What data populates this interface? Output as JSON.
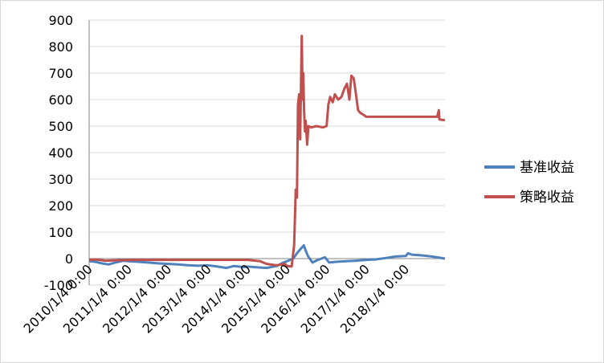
{
  "chart_data": {
    "type": "line",
    "title": "",
    "xlabel": "",
    "ylabel": "",
    "ylim": [
      -100,
      900
    ],
    "yticks": [
      -100,
      0,
      100,
      200,
      300,
      400,
      500,
      600,
      700,
      800,
      900
    ],
    "x_range": [
      "2010-01-04",
      "2018-12-31"
    ],
    "x_tick_labels": [
      "2010/1/4 0:00",
      "2011/1/4 0:00",
      "2012/1/4 0:00",
      "2013/1/4 0:00",
      "2014/1/4 0:00",
      "2015/1/4 0:00",
      "2016/1/4 0:00",
      "2017/1/4 0:00",
      "2018/1/4 0:00"
    ],
    "x_tick_dates": [
      "2010-01-04",
      "2011-01-04",
      "2012-01-04",
      "2013-01-04",
      "2014-01-04",
      "2015-01-04",
      "2016-01-04",
      "2017-01-04",
      "2018-01-04"
    ],
    "grid": "horizontal",
    "legend_position": "right",
    "series": [
      {
        "name": "基准收益",
        "color": "#4f81bd",
        "points": [
          [
            "2010-01-04",
            -10
          ],
          [
            "2010-03-01",
            -12
          ],
          [
            "2010-05-01",
            -18
          ],
          [
            "2010-07-01",
            -22
          ],
          [
            "2010-09-01",
            -15
          ],
          [
            "2010-11-15",
            -8
          ],
          [
            "2011-01-04",
            -10
          ],
          [
            "2011-04-01",
            -12
          ],
          [
            "2011-07-01",
            -15
          ],
          [
            "2011-10-01",
            -18
          ],
          [
            "2012-01-04",
            -20
          ],
          [
            "2012-04-01",
            -22
          ],
          [
            "2012-07-01",
            -25
          ],
          [
            "2012-10-01",
            -27
          ],
          [
            "2013-01-04",
            -25
          ],
          [
            "2013-04-01",
            -30
          ],
          [
            "2013-06-25",
            -35
          ],
          [
            "2013-09-01",
            -28
          ],
          [
            "2013-12-01",
            -32
          ],
          [
            "2014-01-04",
            -30
          ],
          [
            "2014-04-01",
            -33
          ],
          [
            "2014-07-01",
            -35
          ],
          [
            "2014-10-01",
            -28
          ],
          [
            "2014-12-01",
            -15
          ],
          [
            "2015-01-04",
            -10
          ],
          [
            "2015-03-01",
            0
          ],
          [
            "2015-04-15",
            25
          ],
          [
            "2015-06-08",
            50
          ],
          [
            "2015-06-25",
            30
          ],
          [
            "2015-07-15",
            10
          ],
          [
            "2015-08-26",
            -15
          ],
          [
            "2015-10-15",
            -5
          ],
          [
            "2015-12-20",
            5
          ],
          [
            "2016-01-27",
            -15
          ],
          [
            "2016-04-01",
            -12
          ],
          [
            "2016-07-01",
            -10
          ],
          [
            "2016-10-01",
            -8
          ],
          [
            "2017-01-04",
            -5
          ],
          [
            "2017-04-01",
            -3
          ],
          [
            "2017-07-01",
            2
          ],
          [
            "2017-10-01",
            8
          ],
          [
            "2018-01-04",
            10
          ],
          [
            "2018-01-25",
            20
          ],
          [
            "2018-03-01",
            15
          ],
          [
            "2018-06-01",
            12
          ],
          [
            "2018-09-01",
            8
          ],
          [
            "2018-12-31",
            0
          ]
        ]
      },
      {
        "name": "策略收益",
        "color": "#c0504d",
        "points": [
          [
            "2010-01-04",
            -5
          ],
          [
            "2010-03-01",
            -3
          ],
          [
            "2010-06-01",
            -8
          ],
          [
            "2011-01-04",
            -5
          ],
          [
            "2012-01-04",
            -5
          ],
          [
            "2013-01-04",
            -5
          ],
          [
            "2014-01-04",
            -5
          ],
          [
            "2014-05-01",
            -10
          ],
          [
            "2014-07-01",
            -20
          ],
          [
            "2014-10-01",
            -25
          ],
          [
            "2014-12-15",
            -20
          ],
          [
            "2015-01-04",
            -28
          ],
          [
            "2015-02-15",
            -30
          ],
          [
            "2015-03-10",
            50
          ],
          [
            "2015-03-25",
            260
          ],
          [
            "2015-04-05",
            230
          ],
          [
            "2015-04-15",
            580
          ],
          [
            "2015-04-25",
            620
          ],
          [
            "2015-05-05",
            450
          ],
          [
            "2015-05-20",
            840
          ],
          [
            "2015-05-28",
            600
          ],
          [
            "2015-06-03",
            700
          ],
          [
            "2015-06-10",
            560
          ],
          [
            "2015-06-18",
            480
          ],
          [
            "2015-06-25",
            520
          ],
          [
            "2015-07-08",
            430
          ],
          [
            "2015-07-20",
            500
          ],
          [
            "2015-08-15",
            495
          ],
          [
            "2015-10-01",
            500
          ],
          [
            "2015-12-01",
            495
          ],
          [
            "2016-01-04",
            500
          ],
          [
            "2016-01-20",
            580
          ],
          [
            "2016-02-05",
            610
          ],
          [
            "2016-03-01",
            590
          ],
          [
            "2016-03-20",
            620
          ],
          [
            "2016-04-20",
            600
          ],
          [
            "2016-05-20",
            610
          ],
          [
            "2016-06-15",
            640
          ],
          [
            "2016-07-10",
            660
          ],
          [
            "2016-08-01",
            600
          ],
          [
            "2016-08-20",
            690
          ],
          [
            "2016-09-10",
            680
          ],
          [
            "2016-10-01",
            620
          ],
          [
            "2016-10-20",
            560
          ],
          [
            "2016-11-10",
            550
          ],
          [
            "2016-12-01",
            545
          ],
          [
            "2017-01-04",
            535
          ],
          [
            "2017-06-01",
            535
          ],
          [
            "2018-01-04",
            535
          ],
          [
            "2018-06-01",
            535
          ],
          [
            "2018-10-20",
            535
          ],
          [
            "2018-11-05",
            560
          ],
          [
            "2018-11-10",
            525
          ],
          [
            "2018-12-31",
            522
          ]
        ]
      }
    ]
  }
}
